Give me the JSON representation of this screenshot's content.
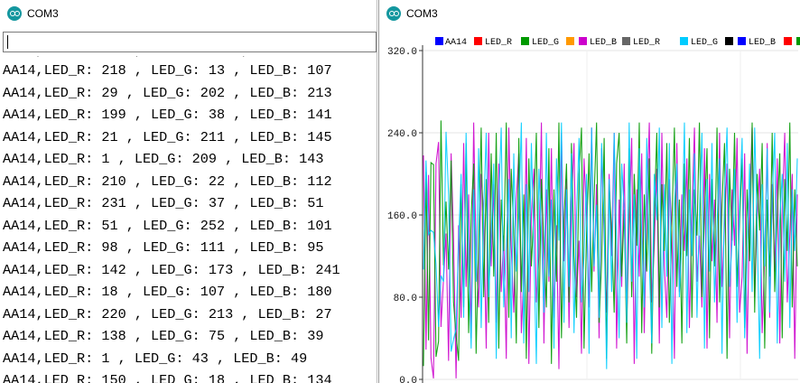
{
  "serial_monitor": {
    "title": "COM3",
    "send_input_value": "",
    "lines": [
      "AA14,LED_R: 218 , LED_G: 13 , LED_B: 107",
      "AA14,LED_R: 29 , LED_G: 202 , LED_B: 213",
      "AA14,LED_R: 199 , LED_G: 38 , LED_B: 141",
      "AA14,LED_R: 21 , LED_G: 211 , LED_B: 145",
      "AA14,LED_R: 1 , LED_G: 209 , LED_B: 143",
      "AA14,LED_R: 210 , LED_G: 22 , LED_B: 112",
      "AA14,LED_R: 231 , LED_G: 37 , LED_B: 51",
      "AA14,LED_R: 51 , LED_G: 252 , LED_B: 101",
      "AA14,LED_R: 98 , LED_G: 111 , LED_B: 95",
      "AA14,LED_R: 142 , LED_G: 173 , LED_B: 241",
      "AA14,LED_R: 18 , LED_G: 107 , LED_B: 180",
      "AA14,LED_R: 220 , LED_G: 213 , LED_B: 27",
      "AA14,LED_R: 138 , LED_G: 75 , LED_B: 39",
      "AA14,LED_R: 1 , LED_G: 43 , LED_B: 49",
      "AA14,LED_R: 150 , LED_G: 18 , LED_B: 134"
    ]
  },
  "serial_plotter": {
    "title": "COM3",
    "legend": [
      {
        "label": "AA14",
        "color": "#0000ff"
      },
      {
        "label": "LED_R",
        "color": "#ff0000"
      },
      {
        "label": "LED_G",
        "color": "#009900"
      },
      {
        "label": "LED_B",
        "color": "#ff9900"
      },
      {
        "label": "LED_R",
        "color": "#cc00cc"
      },
      {
        "label": "LED_G",
        "color": "#666666"
      },
      {
        "label": "LED_B",
        "color": "#00ccff"
      },
      {
        "label": "",
        "color": "#000000"
      },
      {
        "label": "",
        "color": "#0000ff"
      },
      {
        "label": "",
        "color": "#ff0000"
      },
      {
        "label": "",
        "color": "#009900"
      }
    ],
    "legend_text": [
      "AA14",
      "LED_R",
      "LED_G",
      "LED_B",
      "LED_R",
      "LED_G",
      "LED_B"
    ]
  },
  "chart_data": {
    "type": "line",
    "title": "",
    "xlabel": "",
    "ylabel": "",
    "ylim": [
      0,
      320
    ],
    "yticks": [
      "320.0",
      "240.0",
      "160.0",
      "80.0",
      "0.0"
    ],
    "grid": true,
    "legend_position": "top",
    "series": [
      {
        "name": "LED_R",
        "color": "#cc00cc",
        "values": [
          218,
          29,
          199,
          21,
          1,
          210,
          231,
          51,
          98,
          142,
          18,
          220,
          138,
          1,
          150,
          60,
          230,
          90,
          180,
          40,
          250,
          120,
          70,
          200,
          160,
          30,
          240,
          110,
          190,
          55,
          210,
          85,
          140,
          20,
          245,
          130,
          65,
          175,
          220,
          45,
          100,
          235,
          15,
          160,
          205,
          75,
          120,
          250,
          35,
          185,
          95,
          225,
          60,
          150,
          10,
          240,
          115,
          195,
          50,
          170,
          230,
          80,
          135,
          25,
          215,
          160,
          70,
          245,
          105,
          190,
          40,
          225,
          140,
          65,
          200,
          120,
          240,
          30,
          175,
          90,
          210,
          55,
          150,
          235,
          15,
          185,
          100,
          220,
          45,
          165,
          250,
          75,
          130,
          205,
          35,
          240,
          110,
          60,
          195,
          145,
          20,
          230,
          85,
          180,
          125,
          215,
          50,
          160,
          245,
          95,
          140,
          70,
          225,
          30,
          200,
          115,
          175,
          55,
          240,
          90,
          150,
          210,
          40,
          185,
          130,
          235,
          65,
          100,
          220,
          25,
          170,
          245,
          80,
          155,
          205,
          45,
          120,
          230,
          60,
          190,
          105,
          215,
          35,
          165,
          240,
          75,
          140,
          200,
          20,
          180
        ]
      },
      {
        "name": "LED_G",
        "color": "#009900",
        "values": [
          13,
          202,
          38,
          211,
          209,
          22,
          37,
          252,
          111,
          173,
          107,
          213,
          75,
          43,
          18,
          190,
          70,
          230,
          45,
          160,
          210,
          25,
          135,
          245,
          80,
          195,
          55,
          220,
          100,
          240,
          30,
          175,
          125,
          250,
          60,
          205,
          145,
          35,
          235,
          85,
          180,
          20,
          215,
          110,
          165,
          240,
          50,
          195,
          130,
          70,
          225,
          15,
          185,
          95,
          250,
          40,
          155,
          210,
          75,
          230,
          120,
          60,
          200,
          245,
          30,
          140,
          220,
          85,
          175,
          250,
          55,
          115,
          235,
          20,
          190,
          145,
          65,
          210,
          240,
          100,
          165,
          35,
          225,
          80,
          200,
          130,
          250,
          45,
          180,
          105,
          215,
          25,
          160,
          240,
          70,
          190,
          125,
          230,
          55,
          150,
          245,
          90,
          175,
          35,
          210,
          120,
          235,
          60,
          185,
          140,
          250,
          80,
          160,
          225,
          40,
          195,
          110,
          245,
          75,
          170,
          230,
          20,
          205,
          135,
          240,
          90,
          155,
          215,
          50,
          185,
          115,
          250,
          65,
          200,
          145,
          230,
          30,
          175,
          100,
          240,
          85,
          160,
          220,
          40,
          195,
          125,
          250,
          70,
          185,
          110
        ]
      },
      {
        "name": "LED_B",
        "color": "#00ccff",
        "values": [
          107,
          213,
          141,
          145,
          143,
          112,
          51,
          101,
          95,
          241,
          180,
          27,
          39,
          49,
          134,
          200,
          60,
          240,
          120,
          30,
          185,
          95,
          225,
          50,
          165,
          240,
          80,
          140,
          210,
          20,
          175,
          245,
          70,
          130,
          195,
          40,
          220,
          105,
          160,
          250,
          35,
          190,
          85,
          230,
          125,
          15,
          205,
          145,
          65,
          240,
          100,
          175,
          30,
          215,
          135,
          250,
          55,
          185,
          90,
          220,
          45,
          160,
          235,
          75,
          120,
          200,
          25,
          245,
          110,
          170,
          60,
          230,
          150,
          10,
          195,
          85,
          240,
          130,
          40,
          210,
          165,
          55,
          250,
          95,
          180,
          20,
          225,
          140,
          70,
          235,
          115,
          35,
          200,
          155,
          245,
          50,
          190,
          100,
          230,
          15,
          170,
          210,
          80,
          135,
          250,
          45,
          185,
          120,
          220,
          60,
          160,
          240,
          30,
          195,
          105,
          230,
          75,
          150,
          215,
          25,
          180,
          245,
          90,
          135,
          205,
          55,
          170,
          235,
          40,
          120,
          210,
          85,
          245,
          150,
          20,
          190,
          110,
          225,
          65,
          175,
          240,
          35,
          155,
          200,
          95,
          230,
          50,
          185,
          125,
          215
        ]
      }
    ]
  }
}
